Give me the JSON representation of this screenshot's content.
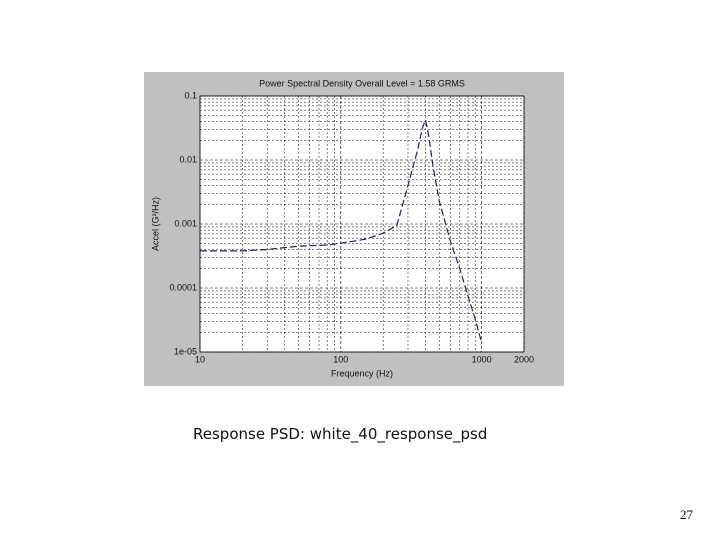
{
  "chart_data": {
    "type": "line",
    "title": "Power Spectral Density  Overall Level =  1.58 GRMS",
    "xlabel": "Frequency (Hz)",
    "ylabel": "Accel (G²/Hz)",
    "xscale": "log",
    "yscale": "log",
    "grid": true,
    "xlim": [
      10,
      2000
    ],
    "xticks": [
      10,
      100,
      1000,
      2000
    ],
    "ylim": [
      1e-05,
      0.1
    ],
    "yticks": [
      {
        "value": 1e-05,
        "label": "1e-05"
      },
      0.0001,
      0.001,
      0.01,
      0.1
    ],
    "series": [
      {
        "color": "#1c1c78",
        "x": [
          10,
          20,
          30,
          50,
          80,
          100,
          150,
          200,
          250,
          300,
          350,
          380,
          400,
          420,
          450,
          500,
          600,
          700,
          800,
          900,
          1000
        ],
        "values": [
          0.00038,
          0.00038,
          0.0004,
          0.00045,
          0.00047,
          0.0005,
          0.00058,
          0.00072,
          0.00095,
          0.004,
          0.014,
          0.032,
          0.042,
          0.025,
          0.0084,
          0.0023,
          0.00054,
          0.0002,
          7.5e-05,
          3.3e-05,
          1.4e-05
        ]
      }
    ]
  },
  "caption": "Response PSD:  white_40_response_psd",
  "page_number": "27"
}
